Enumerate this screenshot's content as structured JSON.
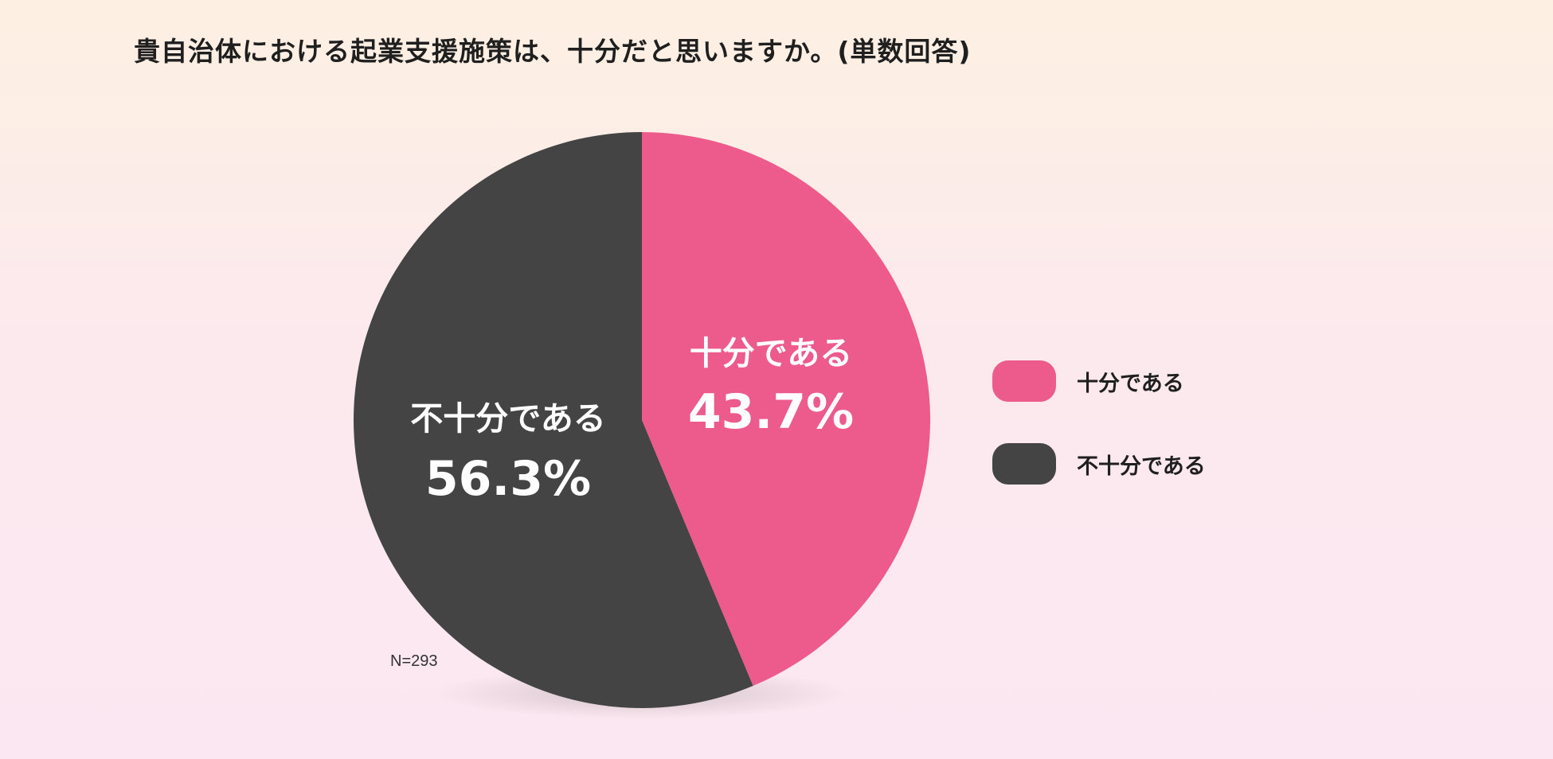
{
  "title": "貴自治体における起業支援施策は、十分だと思いますか。(単数回答)",
  "note": "N=293",
  "colors": {
    "sufficient": "#ed5a8c",
    "insufficient": "#444444"
  },
  "legend": {
    "items": [
      {
        "label": "十分である",
        "color": "#ed5a8c"
      },
      {
        "label": "不十分である",
        "color": "#444444"
      }
    ]
  },
  "chart_data": {
    "type": "pie",
    "title": "貴自治体における起業支援施策は、十分だと思いますか。(単数回答)",
    "slices": [
      {
        "label": "十分である",
        "value": 43.7,
        "value_label": "43.7%",
        "color": "#ed5a8c"
      },
      {
        "label": "不十分である",
        "value": 56.3,
        "value_label": "56.3%",
        "color": "#444444"
      }
    ],
    "unit": "%",
    "legend_position": "right",
    "start": "12 o'clock, clockwise"
  }
}
